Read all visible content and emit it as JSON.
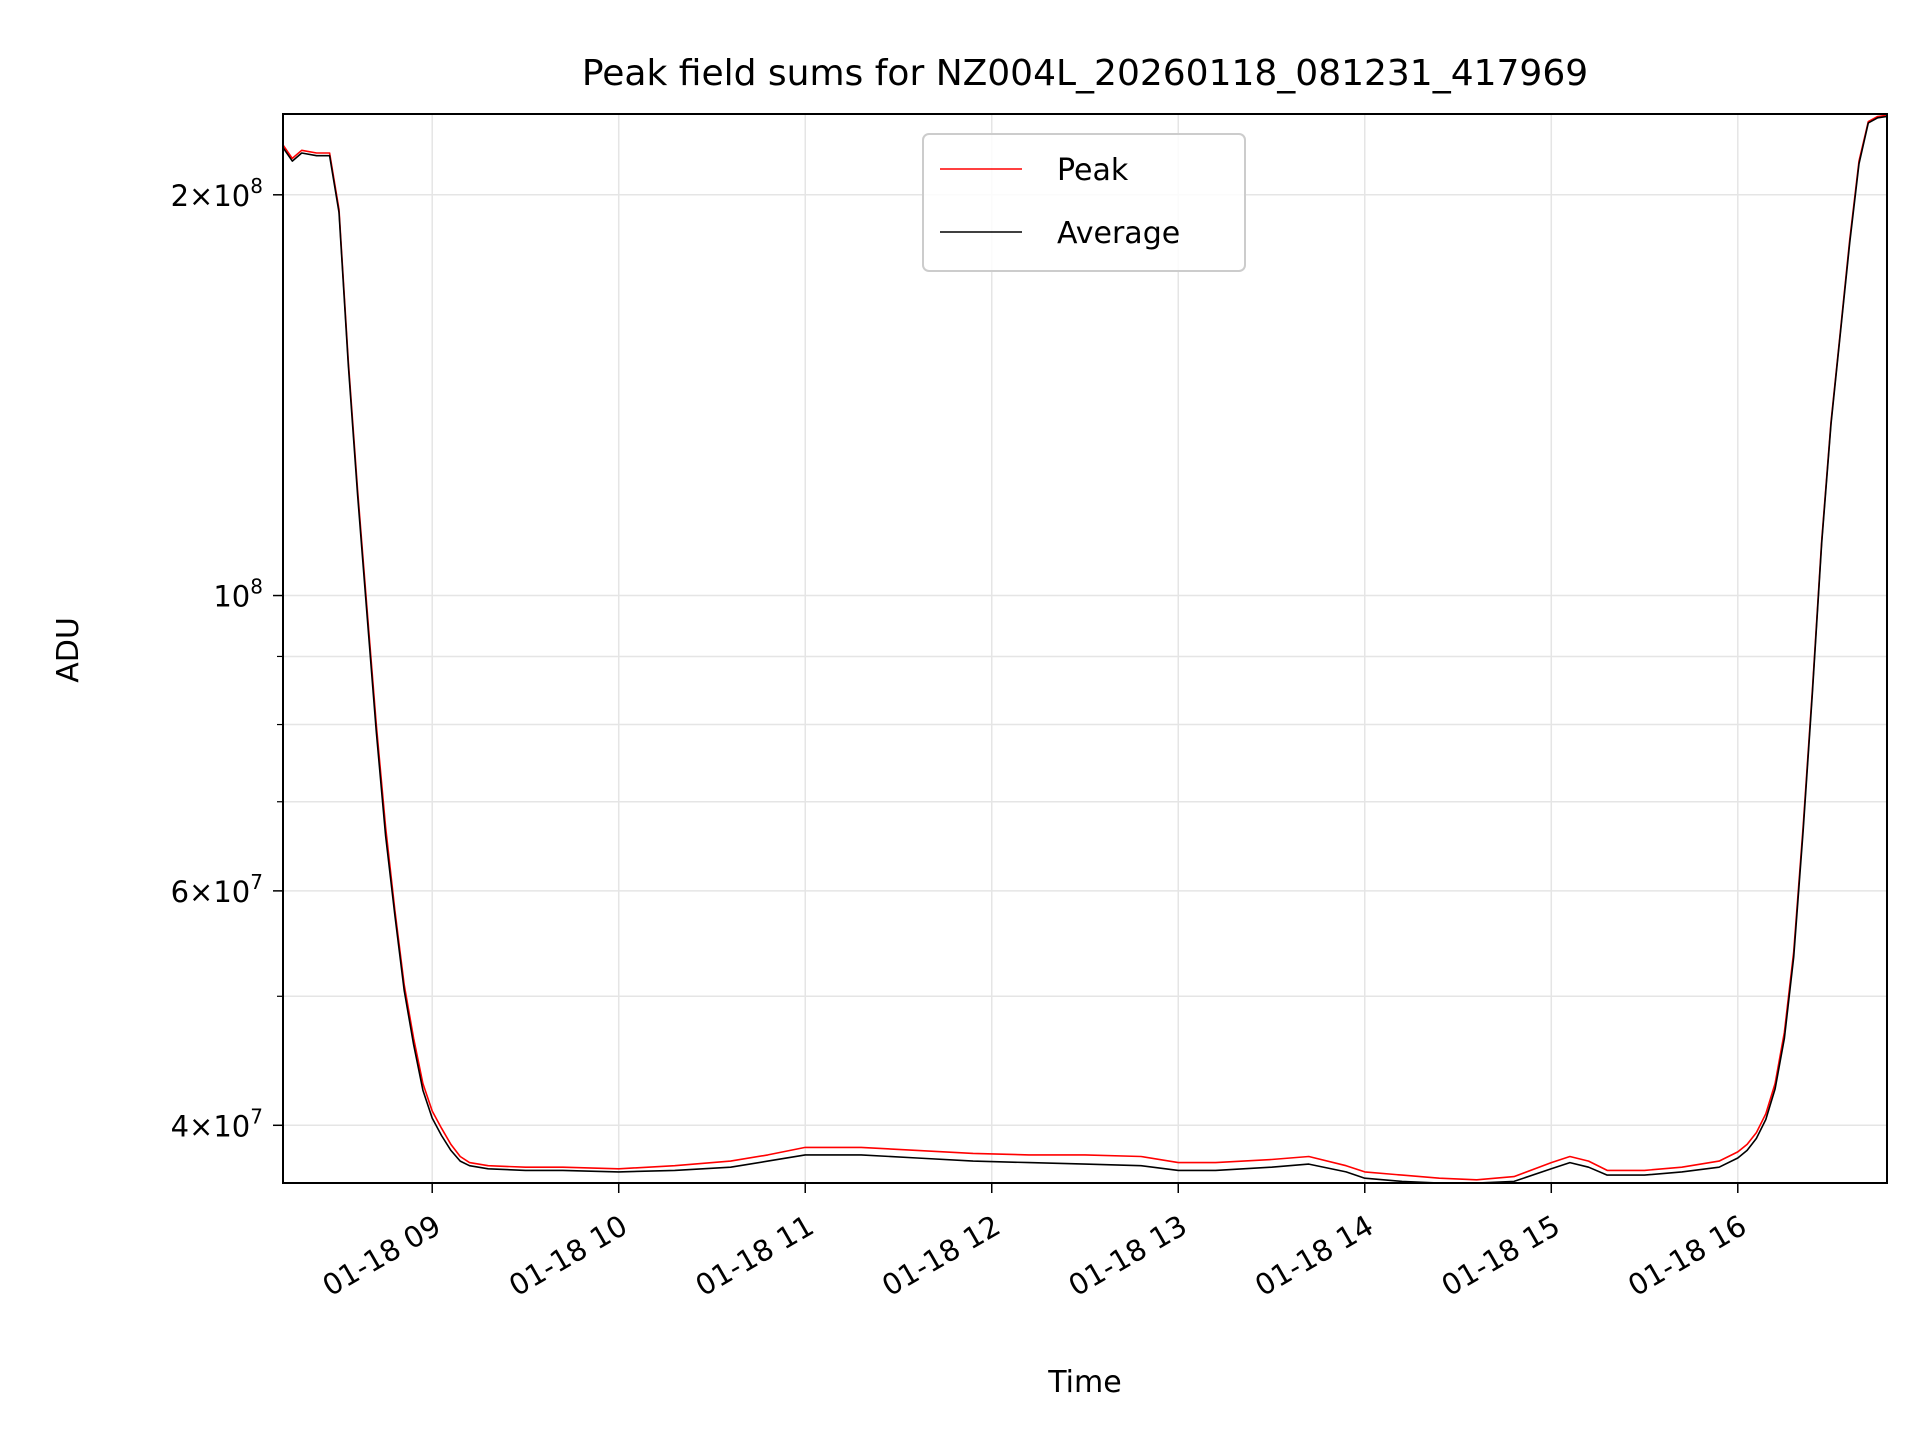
{
  "chart_data": {
    "type": "line",
    "title": "Peak field sums for NZ004L_20260118_081231_417969",
    "xlabel": "Time",
    "ylabel": "ADU",
    "yscale": "log",
    "grid": true,
    "legend_position": "top-center",
    "x_unit": "hours since 01-18 00:00",
    "xlim": [
      8.2,
      16.8
    ],
    "ylim": [
      36200000,
      230000000
    ],
    "x_ticks": [
      9,
      10,
      11,
      12,
      13,
      14,
      15,
      16
    ],
    "x_tick_labels": [
      "01-18 09",
      "01-18 10",
      "01-18 11",
      "01-18 12",
      "01-18 13",
      "01-18 14",
      "01-18 15",
      "01-18 16"
    ],
    "y_ticks": [
      {
        "value": 200000000,
        "base": "2×10",
        "exp": "8"
      },
      {
        "value": 100000000,
        "base": "10",
        "exp": "8"
      },
      {
        "value": 60000000,
        "base": "6×10",
        "exp": "7"
      },
      {
        "value": 40000000,
        "base": "4×10",
        "exp": "7"
      }
    ],
    "y_minor_ticks": [
      90000000,
      80000000,
      70000000,
      50000000
    ],
    "series": [
      {
        "name": "Peak",
        "color": "#ff0000",
        "x": [
          8.2,
          8.25,
          8.3,
          8.38,
          8.45,
          8.5,
          8.55,
          8.6,
          8.65,
          8.7,
          8.75,
          8.8,
          8.85,
          8.9,
          8.95,
          9.0,
          9.05,
          9.1,
          9.15,
          9.2,
          9.3,
          9.5,
          9.7,
          10.0,
          10.3,
          10.6,
          10.8,
          11.0,
          11.3,
          11.6,
          11.9,
          12.2,
          12.5,
          12.8,
          13.0,
          13.2,
          13.5,
          13.7,
          13.9,
          14.0,
          14.2,
          14.4,
          14.6,
          14.8,
          15.0,
          15.1,
          15.2,
          15.3,
          15.5,
          15.7,
          15.9,
          16.0,
          16.05,
          16.1,
          16.15,
          16.2,
          16.25,
          16.3,
          16.35,
          16.4,
          16.45,
          16.5,
          16.55,
          16.6,
          16.65,
          16.7,
          16.75,
          16.8
        ],
        "y": [
          218000000,
          213000000,
          216000000,
          215000000,
          215000000,
          195000000,
          150000000,
          120000000,
          98000000,
          80000000,
          67000000,
          58000000,
          51000000,
          46500000,
          43000000,
          41000000,
          39800000,
          38700000,
          37900000,
          37500000,
          37300000,
          37200000,
          37200000,
          37100000,
          37300000,
          37600000,
          38000000,
          38500000,
          38500000,
          38300000,
          38100000,
          38000000,
          38000000,
          37900000,
          37500000,
          37500000,
          37700000,
          37900000,
          37300000,
          36900000,
          36700000,
          36500000,
          36400000,
          36600000,
          37500000,
          37900000,
          37600000,
          37000000,
          37000000,
          37200000,
          37600000,
          38200000,
          38700000,
          39500000,
          40800000,
          43000000,
          47000000,
          54000000,
          67000000,
          85000000,
          110000000,
          135000000,
          158000000,
          185000000,
          212000000,
          227000000,
          229000000,
          229500000
        ]
      },
      {
        "name": "Average",
        "color": "#000000",
        "x": [
          8.2,
          8.25,
          8.3,
          8.38,
          8.45,
          8.5,
          8.55,
          8.6,
          8.65,
          8.7,
          8.75,
          8.8,
          8.85,
          8.9,
          8.95,
          9.0,
          9.05,
          9.1,
          9.15,
          9.2,
          9.3,
          9.5,
          9.7,
          10.0,
          10.3,
          10.6,
          10.8,
          11.0,
          11.3,
          11.6,
          11.9,
          12.2,
          12.5,
          12.8,
          13.0,
          13.2,
          13.5,
          13.7,
          13.9,
          14.0,
          14.2,
          14.4,
          14.6,
          14.8,
          15.0,
          15.1,
          15.2,
          15.3,
          15.5,
          15.7,
          15.9,
          16.0,
          16.05,
          16.1,
          16.15,
          16.2,
          16.25,
          16.3,
          16.35,
          16.4,
          16.45,
          16.5,
          16.55,
          16.6,
          16.65,
          16.7,
          16.75,
          16.8
        ],
        "y": [
          217000000,
          212000000,
          215000000,
          214000000,
          214000000,
          194000000,
          149000000,
          119000000,
          97000000,
          79000000,
          66000000,
          57500000,
          50500000,
          46000000,
          42500000,
          40500000,
          39300000,
          38300000,
          37600000,
          37300000,
          37100000,
          37000000,
          37000000,
          36900000,
          37000000,
          37200000,
          37600000,
          38000000,
          38000000,
          37800000,
          37600000,
          37500000,
          37400000,
          37300000,
          37000000,
          37000000,
          37200000,
          37400000,
          36900000,
          36500000,
          36300000,
          36200000,
          36200000,
          36300000,
          37100000,
          37500000,
          37200000,
          36700000,
          36700000,
          36900000,
          37200000,
          37800000,
          38300000,
          39100000,
          40400000,
          42600000,
          46500000,
          53500000,
          66500000,
          84500000,
          109500000,
          134500000,
          157500000,
          184000000,
          211000000,
          226500000,
          228500000,
          229000000
        ]
      }
    ]
  }
}
